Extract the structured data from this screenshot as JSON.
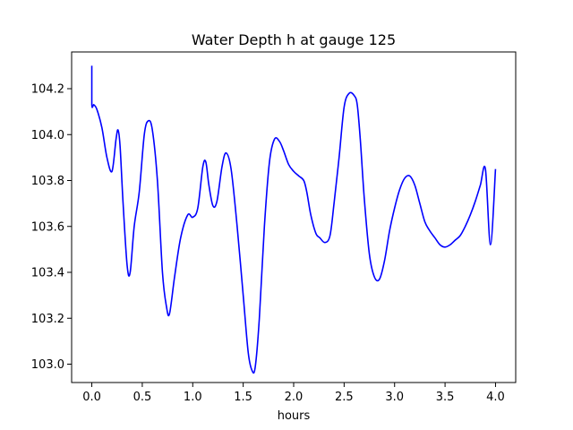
{
  "chart_data": {
    "type": "line",
    "title": "Water Depth h at gauge 125",
    "xlabel": "hours",
    "ylabel": "",
    "xlim": [
      -0.2,
      4.2
    ],
    "ylim": [
      102.92,
      104.36
    ],
    "xticks": [
      0.0,
      0.5,
      1.0,
      1.5,
      2.0,
      2.5,
      3.0,
      3.5,
      4.0
    ],
    "xtick_labels": [
      "0.0",
      "0.5",
      "1.0",
      "1.5",
      "2.0",
      "2.5",
      "3.0",
      "3.5",
      "4.0"
    ],
    "yticks": [
      103.0,
      103.2,
      103.4,
      103.6,
      103.8,
      104.0,
      104.2
    ],
    "ytick_labels": [
      "103.0",
      "103.2",
      "103.4",
      "103.6",
      "103.8",
      "104.0",
      "104.2"
    ],
    "grid": false,
    "legend": "none",
    "series": [
      {
        "color": "#0000ff",
        "x": [
          0.0,
          0.0,
          0.02,
          0.05,
          0.1,
          0.15,
          0.2,
          0.24,
          0.26,
          0.28,
          0.31,
          0.35,
          0.38,
          0.42,
          0.47,
          0.52,
          0.56,
          0.6,
          0.65,
          0.7,
          0.74,
          0.77,
          0.82,
          0.88,
          0.95,
          1.0,
          1.05,
          1.1,
          1.13,
          1.16,
          1.2,
          1.24,
          1.29,
          1.33,
          1.38,
          1.44,
          1.5,
          1.55,
          1.59,
          1.62,
          1.66,
          1.71,
          1.76,
          1.81,
          1.86,
          1.9,
          1.95,
          2.0,
          2.05,
          2.1,
          2.13,
          2.17,
          2.22,
          2.26,
          2.31,
          2.36,
          2.4,
          2.45,
          2.5,
          2.55,
          2.6,
          2.63,
          2.66,
          2.7,
          2.75,
          2.8,
          2.85,
          2.9,
          2.95,
          3.0,
          3.05,
          3.1,
          3.15,
          3.2,
          3.25,
          3.3,
          3.35,
          3.4,
          3.45,
          3.5,
          3.55,
          3.6,
          3.65,
          3.7,
          3.75,
          3.8,
          3.85,
          3.9,
          3.95,
          4.0
        ],
        "y": [
          104.3,
          104.13,
          104.13,
          104.11,
          104.03,
          103.9,
          103.84,
          103.98,
          104.02,
          103.95,
          103.7,
          103.43,
          103.4,
          103.6,
          103.75,
          104.0,
          104.06,
          104.02,
          103.8,
          103.4,
          103.25,
          103.22,
          103.38,
          103.55,
          103.65,
          103.64,
          103.68,
          103.86,
          103.88,
          103.78,
          103.69,
          103.71,
          103.86,
          103.92,
          103.85,
          103.6,
          103.3,
          103.05,
          102.97,
          102.99,
          103.2,
          103.6,
          103.88,
          103.98,
          103.97,
          103.93,
          103.87,
          103.84,
          103.82,
          103.8,
          103.75,
          103.65,
          103.57,
          103.55,
          103.53,
          103.56,
          103.7,
          103.9,
          104.12,
          104.18,
          104.17,
          104.13,
          103.98,
          103.72,
          103.48,
          103.38,
          103.37,
          103.45,
          103.58,
          103.68,
          103.76,
          103.81,
          103.82,
          103.78,
          103.7,
          103.62,
          103.58,
          103.55,
          103.52,
          103.51,
          103.52,
          103.54,
          103.56,
          103.6,
          103.65,
          103.71,
          103.78,
          103.85,
          103.52,
          103.85
        ]
      }
    ]
  }
}
